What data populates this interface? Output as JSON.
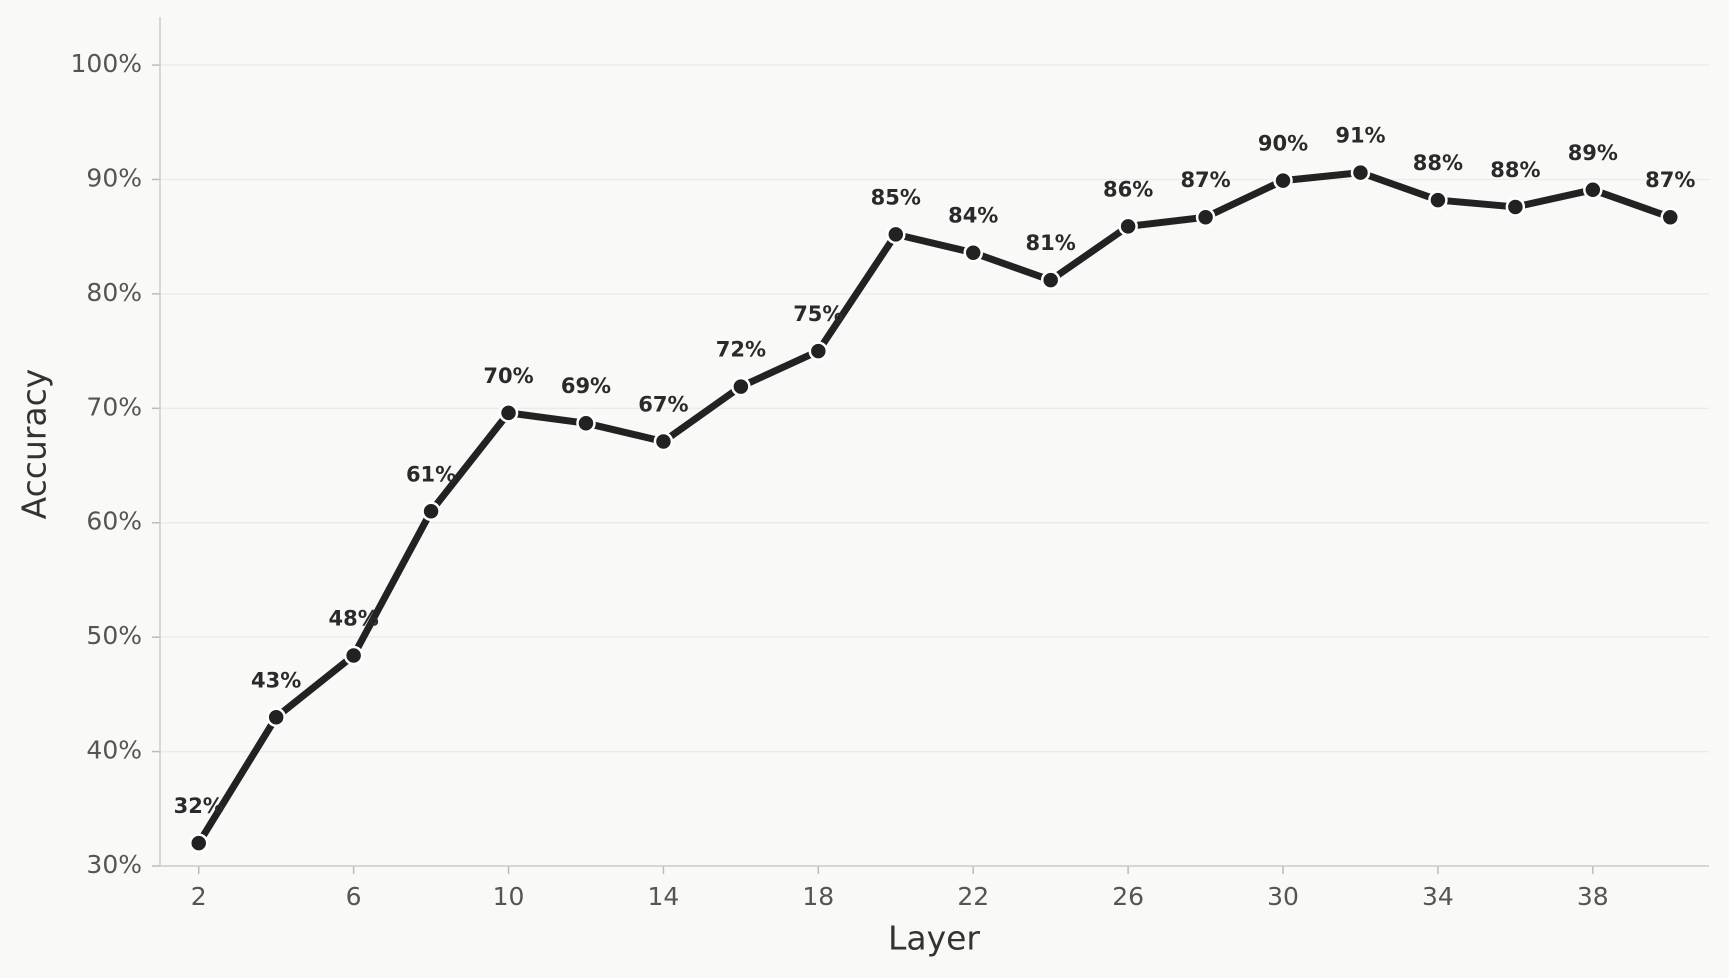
{
  "chart_data": {
    "type": "line",
    "xlabel": "Layer",
    "ylabel": "Accuracy",
    "x": [
      2,
      4,
      6,
      8,
      10,
      12,
      14,
      16,
      18,
      20,
      22,
      24,
      26,
      28,
      30,
      32,
      34,
      36,
      38,
      40
    ],
    "series": [
      {
        "color": "#222222",
        "values": [
          32,
          43,
          48.4,
          61,
          69.6,
          68.7,
          67.1,
          71.9,
          75,
          85.2,
          83.6,
          81.2,
          85.9,
          86.7,
          89.9,
          90.6,
          88.2,
          87.6,
          89.1,
          86.7
        ],
        "value_labels": [
          "32%",
          "43%",
          "48%",
          "61%",
          "70%",
          "69%",
          "67%",
          "72%",
          "75%",
          "85%",
          "84%",
          "81%",
          "86%",
          "87%",
          "90%",
          "91%",
          "88%",
          "88%",
          "89%",
          "87%"
        ]
      }
    ],
    "xlim": [
      1,
      41
    ],
    "ylim": [
      30,
      104.2
    ],
    "xticks": [
      2,
      6,
      10,
      14,
      18,
      22,
      26,
      30,
      34,
      38
    ],
    "yticks": [
      {
        "value": 30,
        "label": "30%"
      },
      {
        "value": 40,
        "label": "40%"
      },
      {
        "value": 50,
        "label": "50%"
      },
      {
        "value": 60,
        "label": "60%"
      },
      {
        "value": 70,
        "label": "70%"
      },
      {
        "value": 80,
        "label": "80%"
      },
      {
        "value": 90,
        "label": "90%"
      },
      {
        "value": 100,
        "label": "100%"
      }
    ],
    "grid": true
  }
}
